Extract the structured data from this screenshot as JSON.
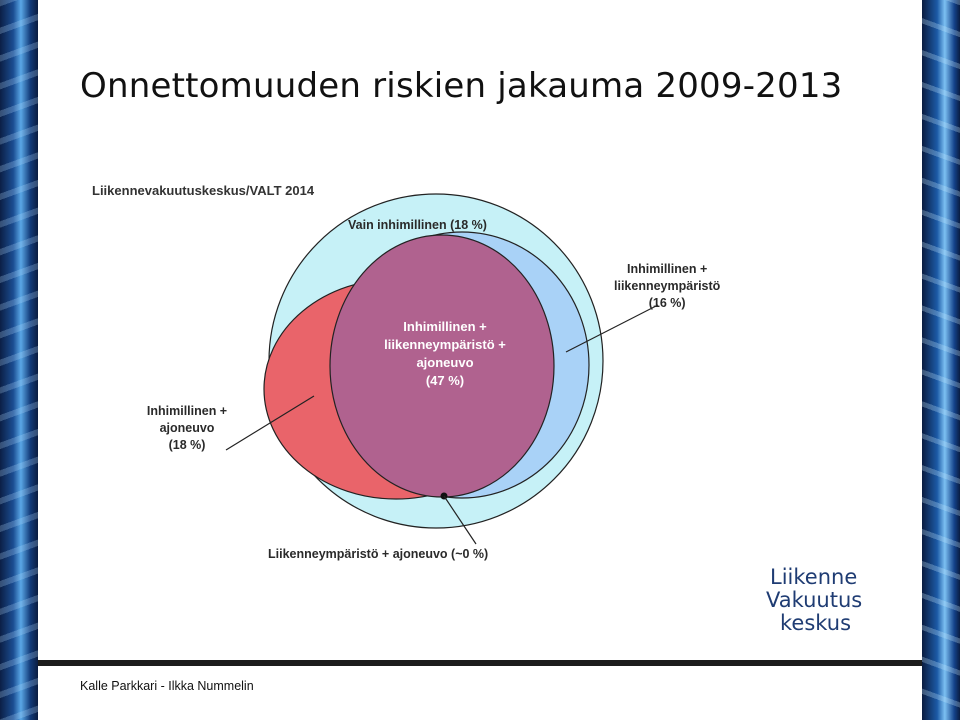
{
  "title": "Onnettomuuden riskien jakauma 2009-2013",
  "source": "Liikennevakuutuskeskus/VALT 2014",
  "diagram": {
    "labels": {
      "top": "Vain inhimillinen (18 %)",
      "right_l1": "Inhimillinen +",
      "right_l2": "liikenneympäristö",
      "right_l3": "(16 %)",
      "center_l1": "Inhimillinen +",
      "center_l2": "liikenneympäristö +",
      "center_l3": "ajoneuvo",
      "center_l4": "(47 %)",
      "left_l1": "Inhimillinen +",
      "left_l2": "ajoneuvo",
      "left_l3": "(18 %)",
      "bottom": "Liikenneympäristö + ajoneuvo (~0 %)"
    },
    "colors": {
      "outer": "#c6f1f7",
      "red": "#e9646a",
      "blue": "#a9d2f7",
      "purple": "#b0628f"
    }
  },
  "logo": {
    "line1": "Liikenne",
    "line2": "Vakuutus",
    "line3": "keskus"
  },
  "footer": {
    "authors": "Kalle Parkkari - Ilkka Nummelin"
  }
}
